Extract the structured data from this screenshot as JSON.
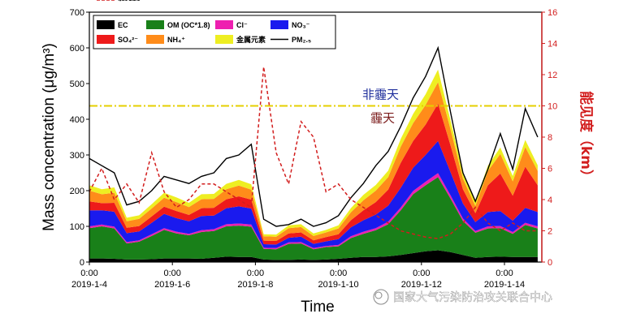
{
  "chart_data": {
    "type": "area",
    "xlabel": "Time",
    "ylabel": "Mass concentration (μg/m³)",
    "ylabel_right": "能见度（km）",
    "ylim": [
      0,
      700
    ],
    "ylim_right": [
      0,
      16
    ],
    "y_ticks": [
      0,
      100,
      200,
      300,
      400,
      500,
      600,
      700
    ],
    "y_ticks_right": [
      0,
      2,
      4,
      6,
      8,
      10,
      12,
      14,
      16
    ],
    "xlim_days": [
      0,
      10.9
    ],
    "x_tick_days": [
      0,
      2,
      4,
      6,
      8,
      10
    ],
    "x_tick_labels": [
      {
        "time": "0:00",
        "date": "2019-1-4"
      },
      {
        "time": "0:00",
        "date": "2019-1-6"
      },
      {
        "time": "0:00",
        "date": "2019-1-8"
      },
      {
        "time": "0:00",
        "date": "2019-1-10"
      },
      {
        "time": "0:00",
        "date": "2019-1-12"
      },
      {
        "time": "0:00",
        "date": "2019-1-14"
      }
    ],
    "x_days": [
      0,
      0.3,
      0.6,
      0.9,
      1.2,
      1.5,
      1.8,
      2.1,
      2.4,
      2.7,
      3.0,
      3.3,
      3.6,
      3.9,
      4.2,
      4.5,
      4.8,
      5.1,
      5.4,
      5.7,
      6.0,
      6.3,
      6.6,
      6.9,
      7.2,
      7.5,
      7.8,
      8.1,
      8.4,
      8.7,
      9.0,
      9.3,
      9.6,
      9.9,
      10.2,
      10.5,
      10.8
    ],
    "series": [
      {
        "name": "EC",
        "legend": "EC",
        "color": "#000000",
        "values": [
          10,
          10,
          9,
          7,
          7,
          8,
          10,
          10,
          10,
          9,
          12,
          15,
          14,
          14,
          7,
          6,
          6,
          7,
          6,
          7,
          9,
          12,
          14,
          14,
          16,
          20,
          25,
          30,
          33,
          28,
          20,
          12,
          14,
          15,
          14,
          14,
          14
        ]
      },
      {
        "name": "OM",
        "legend": "OM (OC*1.8)",
        "color": "#198019",
        "values": [
          85,
          90,
          85,
          45,
          50,
          65,
          80,
          70,
          65,
          75,
          75,
          85,
          88,
          85,
          30,
          30,
          45,
          45,
          30,
          35,
          35,
          55,
          65,
          75,
          90,
          125,
          165,
          185,
          205,
          150,
          95,
          70,
          80,
          80,
          65,
          90,
          80
        ]
      },
      {
        "name": "Cl-",
        "legend": "Cl⁻",
        "color": "#ee1fb0",
        "values": [
          5,
          5,
          5,
          4,
          4,
          5,
          5,
          5,
          4,
          5,
          5,
          6,
          6,
          6,
          3,
          3,
          4,
          4,
          3,
          3,
          4,
          5,
          6,
          6,
          7,
          8,
          9,
          10,
          11,
          9,
          7,
          5,
          6,
          6,
          5,
          6,
          6
        ]
      },
      {
        "name": "NO3-",
        "legend": "NO₃⁻",
        "color": "#1a1aee",
        "values": [
          45,
          40,
          42,
          25,
          25,
          32,
          40,
          38,
          35,
          40,
          38,
          45,
          48,
          45,
          10,
          10,
          13,
          15,
          12,
          13,
          16,
          25,
          32,
          38,
          45,
          55,
          65,
          75,
          90,
          65,
          42,
          25,
          40,
          42,
          32,
          42,
          40
        ]
      },
      {
        "name": "SO42-",
        "legend": "SO₄²⁻",
        "color": "#ee1a1a",
        "values": [
          25,
          20,
          25,
          15,
          15,
          18,
          20,
          20,
          18,
          22,
          22,
          25,
          28,
          25,
          10,
          10,
          12,
          12,
          10,
          12,
          14,
          20,
          28,
          35,
          45,
          70,
          75,
          85,
          105,
          75,
          40,
          25,
          75,
          105,
          70,
          115,
          75
        ]
      },
      {
        "name": "NH4+",
        "legend": "NH₄⁺",
        "color": "#ff8c1a",
        "values": [
          30,
          25,
          28,
          18,
          20,
          22,
          25,
          25,
          22,
          25,
          25,
          28,
          30,
          28,
          12,
          12,
          15,
          15,
          12,
          13,
          16,
          22,
          28,
          32,
          35,
          45,
          50,
          55,
          60,
          45,
          30,
          20,
          40,
          55,
          40,
          55,
          40
        ]
      },
      {
        "name": "金属元素",
        "legend": "金属元素",
        "color": "#eeee22",
        "values": [
          15,
          14,
          15,
          10,
          10,
          12,
          14,
          13,
          12,
          14,
          14,
          15,
          16,
          15,
          6,
          6,
          8,
          8,
          7,
          7,
          9,
          12,
          15,
          16,
          18,
          22,
          26,
          30,
          35,
          25,
          16,
          12,
          15,
          18,
          15,
          20,
          16
        ]
      }
    ],
    "line_series": [
      {
        "name": "PM2.5",
        "legend": "PM₂.₅",
        "color": "#000000",
        "style": "solid",
        "axis": "left",
        "values": [
          290,
          270,
          250,
          160,
          170,
          200,
          240,
          230,
          220,
          240,
          250,
          290,
          300,
          330,
          120,
          100,
          105,
          120,
          100,
          110,
          130,
          180,
          220,
          270,
          310,
          380,
          460,
          520,
          600,
          420,
          250,
          170,
          260,
          360,
          260,
          430,
          350
        ]
      },
      {
        "name": "能见度",
        "legend": "能见度",
        "color": "#d21d1d",
        "style": "dashed",
        "axis": "right",
        "values": [
          4.5,
          6.0,
          4.0,
          5.0,
          3.8,
          7.0,
          4.5,
          3.5,
          4.0,
          5.0,
          5.0,
          4.5,
          4.0,
          3.5,
          12.5,
          7.0,
          5.0,
          9.0,
          8.0,
          4.5,
          5.0,
          4.0,
          3.5,
          3.0,
          2.5,
          2.0,
          1.8,
          1.6,
          1.5,
          1.8,
          2.5,
          3.5,
          2.5,
          2.0,
          2.5,
          2.0,
          2.0
        ]
      }
    ],
    "threshold": {
      "value_km": 10,
      "color": "#e6cf00",
      "style": "dash-dot",
      "label_above": "非霾天",
      "label_below": "霾天"
    }
  },
  "watermark": "国家大气污染防治攻关联合中心"
}
